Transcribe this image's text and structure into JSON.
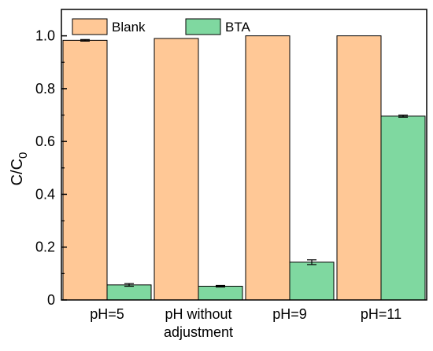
{
  "chart_data": {
    "type": "bar",
    "categories": [
      [
        "pH=5"
      ],
      [
        "pH without",
        "adjustment"
      ],
      [
        "pH=9"
      ],
      [
        "pH=11"
      ]
    ],
    "series": [
      {
        "name": "Blank",
        "color": "#FFC896",
        "values": [
          0.983,
          0.99,
          1.0,
          1.0
        ],
        "errors": [
          0.003,
          0.0,
          0.0,
          0.0
        ]
      },
      {
        "name": "BTA",
        "color": "#7FD8A0",
        "values": [
          0.057,
          0.052,
          0.143,
          0.696
        ],
        "errors": [
          0.005,
          0.003,
          0.009,
          0.004
        ]
      }
    ],
    "ylabel": "C/C",
    "ylabel_sub": "0",
    "ylim": [
      0,
      1.1
    ],
    "yticks": [
      "0",
      "0.2",
      "0.4",
      "0.6",
      "0.8",
      "1.0"
    ],
    "legend": "top-left",
    "grid": false
  }
}
